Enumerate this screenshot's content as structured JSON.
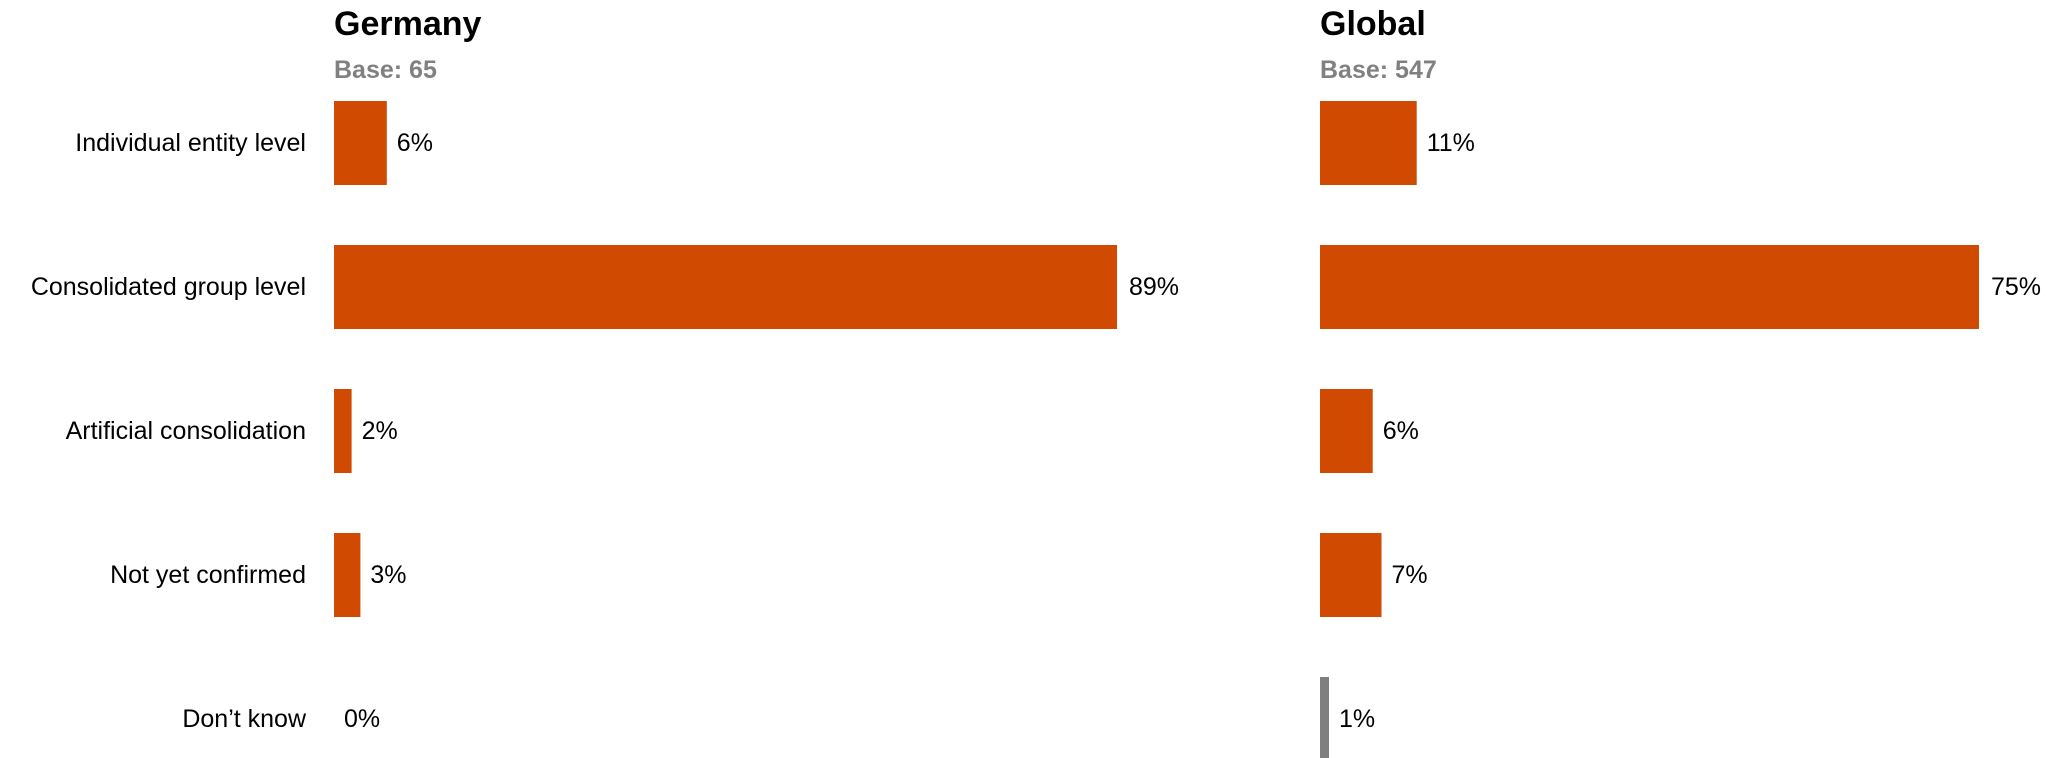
{
  "colors": {
    "bar": "#d04a02",
    "bar_minor": "#7f7f7f",
    "title": "#000000",
    "base": "#808080"
  },
  "chart_data": [
    {
      "type": "bar",
      "orientation": "horizontal",
      "title": "Germany",
      "subtitle": "Base: 65",
      "categories": [
        "Individual entity level",
        "Consolidated group level",
        "Artificial consolidation",
        "Not yet confirmed",
        "Don’t know"
      ],
      "values": [
        6,
        89,
        2,
        3,
        0
      ],
      "value_labels": [
        "6%",
        "89%",
        "2%",
        "3%",
        "0%"
      ],
      "bar_colors": [
        "#d04a02",
        "#d04a02",
        "#d04a02",
        "#d04a02",
        "#d04a02"
      ],
      "xlim": [
        0,
        100
      ],
      "grid": false,
      "legend": "none"
    },
    {
      "type": "bar",
      "orientation": "horizontal",
      "title": "Global",
      "subtitle": "Base: 547",
      "categories": [
        "Individual entity level",
        "Consolidated group level",
        "Artificial consolidation",
        "Not yet confirmed",
        "Don’t know"
      ],
      "values": [
        11,
        75,
        6,
        7,
        1
      ],
      "value_labels": [
        "11%",
        "75%",
        "6%",
        "7%",
        "1%"
      ],
      "bar_colors": [
        "#d04a02",
        "#d04a02",
        "#d04a02",
        "#d04a02",
        "#7f7f7f"
      ],
      "xlim": [
        0,
        100
      ],
      "grid": false,
      "legend": "none"
    }
  ]
}
